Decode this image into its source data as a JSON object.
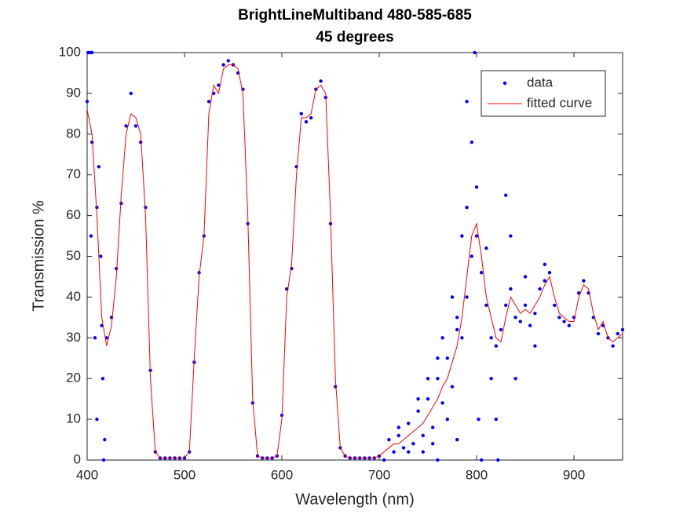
{
  "chart_data": {
    "type": "line",
    "title": "BrightLineMultiband 480-585-685",
    "subtitle": "45 degrees",
    "x_label": "Wavelength (nm)",
    "y_label": "Transmission %",
    "xlim": [
      400,
      950
    ],
    "xticks": [
      400,
      500,
      600,
      700,
      800,
      900
    ],
    "ylim": [
      0,
      100
    ],
    "yticks": [
      0,
      10,
      20,
      30,
      40,
      50,
      60,
      70,
      80,
      90,
      100
    ],
    "legend": "northeast",
    "series": [
      {
        "name": "data",
        "color": "#0000ff",
        "mode": "markers",
        "x": [
          400,
          405,
          410,
          415,
          420,
          425,
          430,
          435,
          440,
          445,
          450,
          455,
          460,
          465,
          470,
          475,
          480,
          485,
          490,
          495,
          500,
          505,
          510,
          515,
          520,
          525,
          530,
          535,
          540,
          545,
          550,
          555,
          560,
          565,
          570,
          575,
          580,
          585,
          590,
          595,
          600,
          605,
          610,
          615,
          620,
          625,
          630,
          635,
          640,
          645,
          650,
          655,
          660,
          665,
          670,
          675,
          680,
          685,
          690,
          695,
          700,
          705,
          710,
          715,
          720,
          725,
          730,
          735,
          740,
          745,
          750,
          755,
          760,
          765,
          770,
          775,
          780,
          785,
          790,
          795,
          800,
          805,
          810,
          815,
          820,
          825,
          830,
          835,
          840,
          845,
          850,
          855,
          860,
          865,
          870,
          875,
          880,
          885,
          890,
          895,
          900,
          905,
          910,
          915,
          920,
          925,
          930,
          935,
          940,
          945,
          950,
          401,
          403,
          405,
          404,
          408,
          410,
          412,
          414,
          416,
          418,
          417,
          720,
          730,
          740,
          750,
          755,
          760,
          765,
          770,
          775,
          780,
          785,
          790,
          795,
          798,
          800,
          802,
          805,
          810,
          815,
          820,
          822,
          830,
          835,
          840,
          850,
          860,
          870,
          790,
          780,
          760,
          745
        ],
        "values": [
          88,
          78,
          62,
          33,
          30,
          35,
          47,
          63,
          82,
          90,
          82,
          78,
          62,
          22,
          2,
          0.5,
          0.5,
          0.5,
          0.5,
          0.5,
          0.5,
          2,
          24,
          46,
          55,
          88,
          90,
          92,
          97,
          98,
          97,
          95,
          91,
          58,
          14,
          1,
          0.5,
          0.5,
          0.5,
          1,
          11,
          42,
          47,
          72,
          85,
          83,
          84,
          91,
          93,
          89,
          58,
          18,
          3,
          1,
          0.5,
          0.5,
          0.5,
          0.5,
          0.5,
          0.5,
          1,
          0,
          5,
          2,
          6,
          3,
          9,
          4,
          12,
          6,
          15,
          8,
          20,
          14,
          25,
          18,
          32,
          30,
          40,
          50,
          55,
          46,
          38,
          30,
          28,
          32,
          38,
          42,
          35,
          34,
          38,
          33,
          36,
          42,
          44,
          46,
          38,
          35,
          34,
          33,
          35,
          41,
          44,
          41,
          35,
          31,
          33,
          30,
          28,
          31,
          32,
          100,
          100,
          100,
          55,
          30,
          10,
          72,
          50,
          20,
          5,
          0,
          8,
          2,
          15,
          20,
          4,
          25,
          30,
          10,
          40,
          5,
          55,
          62,
          78,
          100,
          67,
          10,
          0,
          52,
          20,
          10,
          0,
          65,
          55,
          20,
          45,
          28,
          48,
          88,
          35,
          0,
          2
        ]
      },
      {
        "name": "fitted curve",
        "color": "#ff0000",
        "mode": "line",
        "x": [
          400,
          405,
          410,
          415,
          420,
          425,
          430,
          435,
          440,
          445,
          450,
          455,
          460,
          465,
          470,
          475,
          480,
          485,
          490,
          495,
          500,
          505,
          510,
          515,
          520,
          525,
          530,
          535,
          540,
          545,
          550,
          555,
          560,
          565,
          570,
          575,
          580,
          585,
          590,
          595,
          600,
          605,
          610,
          615,
          620,
          625,
          630,
          635,
          640,
          645,
          650,
          655,
          660,
          665,
          670,
          675,
          680,
          685,
          690,
          695,
          700,
          705,
          710,
          715,
          720,
          725,
          730,
          735,
          740,
          745,
          750,
          755,
          760,
          765,
          770,
          775,
          780,
          785,
          790,
          795,
          800,
          805,
          810,
          815,
          820,
          825,
          830,
          835,
          840,
          845,
          850,
          855,
          860,
          865,
          870,
          875,
          880,
          885,
          890,
          895,
          900,
          905,
          910,
          915,
          920,
          925,
          930,
          935,
          940,
          945,
          950
        ],
        "values": [
          86,
          80,
          60,
          35,
          28,
          33,
          45,
          65,
          80,
          85,
          84,
          80,
          60,
          20,
          2,
          0.5,
          0.5,
          0.5,
          0.5,
          0.5,
          0.5,
          2,
          25,
          45,
          55,
          85,
          92,
          90,
          96,
          97,
          97,
          96,
          90,
          60,
          15,
          1,
          0.5,
          0.5,
          0.5,
          1,
          10,
          40,
          48,
          70,
          84,
          84,
          85,
          91,
          92,
          90,
          60,
          20,
          3,
          1,
          0.5,
          0.5,
          0.5,
          0.5,
          0.5,
          0.5,
          1,
          2,
          3,
          4,
          4,
          5,
          6,
          7,
          8,
          9,
          11,
          13,
          15,
          18,
          20,
          24,
          28,
          35,
          45,
          55,
          58,
          50,
          40,
          35,
          30,
          29,
          35,
          40,
          38,
          36,
          37,
          36,
          38,
          40,
          43,
          45,
          40,
          36,
          35,
          34,
          34,
          40,
          43,
          42,
          36,
          32,
          34,
          30,
          29,
          30,
          31
        ]
      }
    ]
  }
}
